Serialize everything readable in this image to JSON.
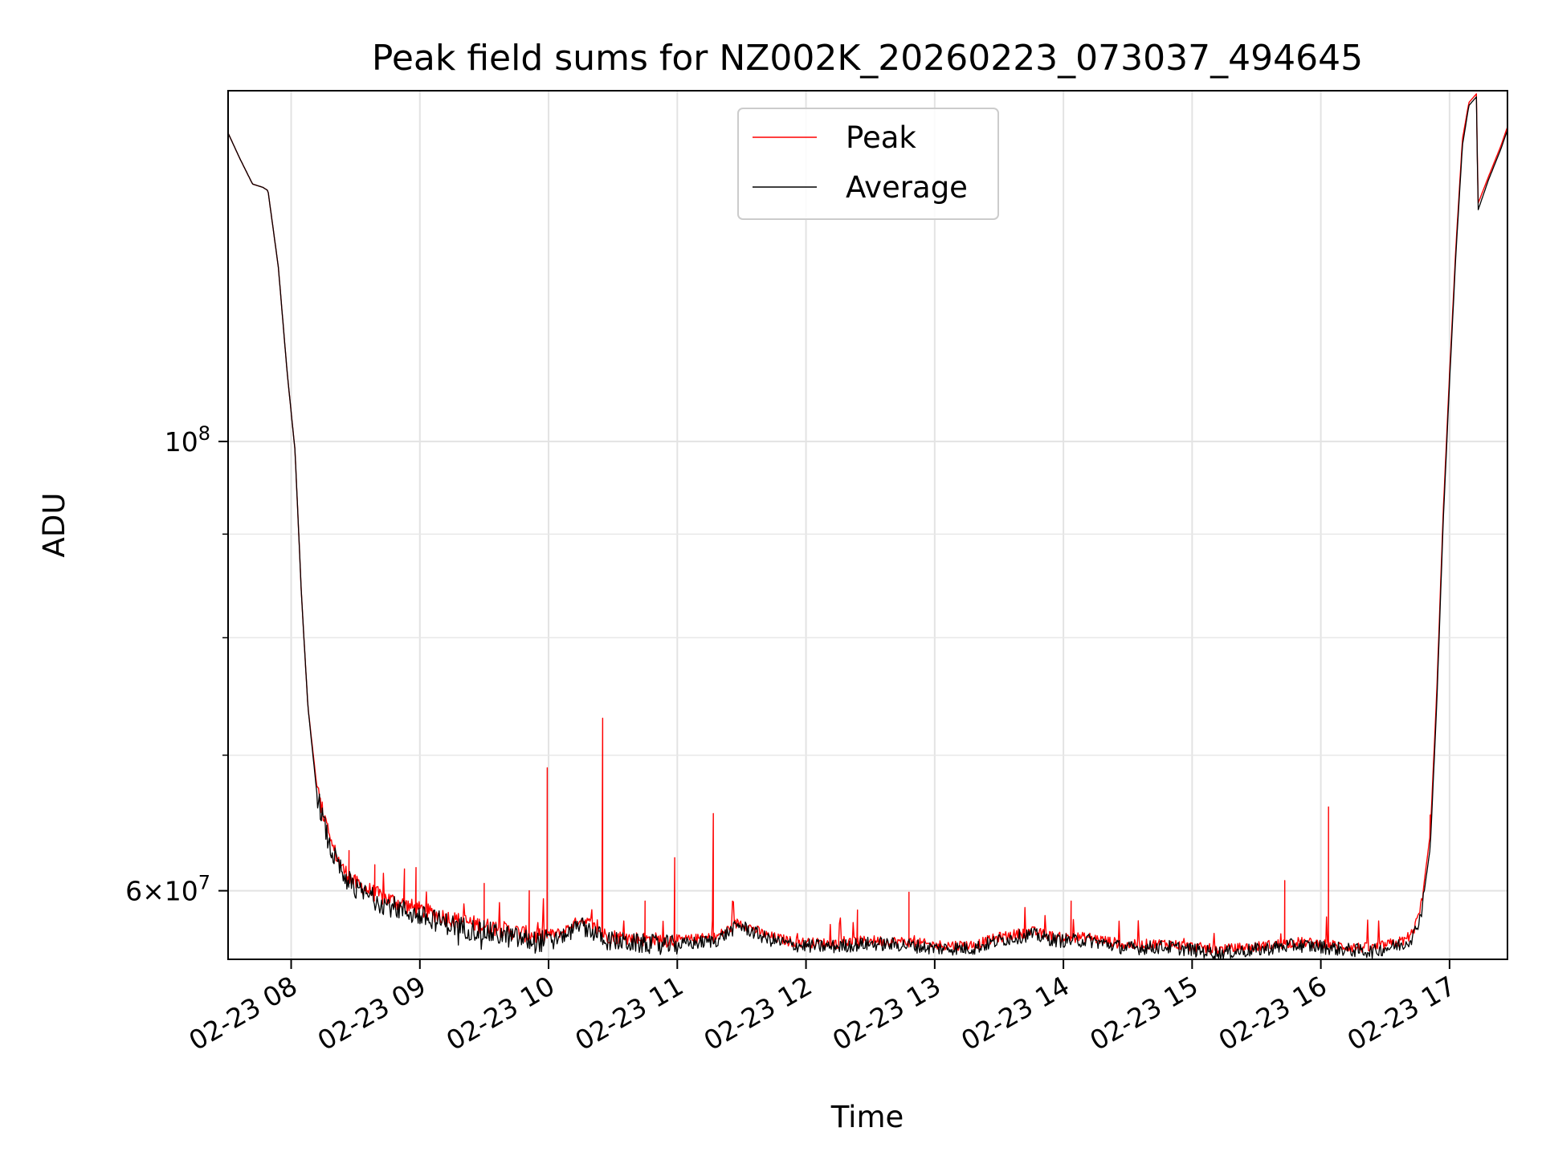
{
  "chart_data": {
    "type": "line",
    "title": "Peak field sums for NZ002K_20260223_073037_494645",
    "xlabel": "Time",
    "ylabel": "ADU",
    "x_unit": "hours (decimal, 2026-02-23)",
    "xlim": [
      7.51,
      17.45
    ],
    "yscale": "log",
    "ylim": [
      55500000,
      149000000
    ],
    "x_ticks": [
      {
        "value": 8,
        "label": "02-23 08"
      },
      {
        "value": 9,
        "label": "02-23 09"
      },
      {
        "value": 10,
        "label": "02-23 10"
      },
      {
        "value": 11,
        "label": "02-23 11"
      },
      {
        "value": 12,
        "label": "02-23 12"
      },
      {
        "value": 13,
        "label": "02-23 13"
      },
      {
        "value": 14,
        "label": "02-23 14"
      },
      {
        "value": 15,
        "label": "02-23 15"
      },
      {
        "value": 16,
        "label": "02-23 16"
      },
      {
        "value": 17,
        "label": "02-23 17"
      }
    ],
    "y_major_ticks": [
      {
        "value": 100000000,
        "base": "10",
        "exp": "8"
      },
      {
        "value": 60000000,
        "base": "6×10",
        "exp": "7"
      }
    ],
    "y_minor_ticks": [
      70000000,
      80000000,
      90000000
    ],
    "grid": true,
    "legend_position": "upper-center",
    "series": [
      {
        "name": "Peak",
        "color": "#ff0000",
        "baseline": [
          [
            7.51,
            142000000
          ],
          [
            7.6,
            138000000
          ],
          [
            7.7,
            134000000
          ],
          [
            7.78,
            133500000
          ],
          [
            7.82,
            133000000
          ],
          [
            7.9,
            122000000
          ],
          [
            7.97,
            108000000
          ],
          [
            8.03,
            99000000
          ],
          [
            8.08,
            84000000
          ],
          [
            8.13,
            74000000
          ],
          [
            8.2,
            67500000
          ],
          [
            8.3,
            63500000
          ],
          [
            8.4,
            61500000
          ],
          [
            8.5,
            60500000
          ],
          [
            8.7,
            59600000
          ],
          [
            9.0,
            58700000
          ],
          [
            9.3,
            58000000
          ],
          [
            9.6,
            57500000
          ],
          [
            9.9,
            57000000
          ],
          [
            10.1,
            57200000
          ],
          [
            10.25,
            58100000
          ],
          [
            10.45,
            57000000
          ],
          [
            10.7,
            56800000
          ],
          [
            11.0,
            56700000
          ],
          [
            11.3,
            56900000
          ],
          [
            11.48,
            57900000
          ],
          [
            11.7,
            57000000
          ],
          [
            11.9,
            56600000
          ],
          [
            12.2,
            56500000
          ],
          [
            12.5,
            56700000
          ],
          [
            12.8,
            56600000
          ],
          [
            13.0,
            56400000
          ],
          [
            13.3,
            56400000
          ],
          [
            13.5,
            56900000
          ],
          [
            13.75,
            57300000
          ],
          [
            13.95,
            56900000
          ],
          [
            14.2,
            56900000
          ],
          [
            14.5,
            56400000
          ],
          [
            14.8,
            56500000
          ],
          [
            15.0,
            56300000
          ],
          [
            15.2,
            56100000
          ],
          [
            15.5,
            56300000
          ],
          [
            15.8,
            56600000
          ],
          [
            16.0,
            56500000
          ],
          [
            16.2,
            56300000
          ],
          [
            16.4,
            56200000
          ],
          [
            16.65,
            56700000
          ],
          [
            16.72,
            57300000
          ],
          [
            16.78,
            59000000
          ],
          [
            16.85,
            64000000
          ],
          [
            16.9,
            75000000
          ],
          [
            16.95,
            92000000
          ],
          [
            17.0,
            108000000
          ],
          [
            17.05,
            125000000
          ],
          [
            17.1,
            141000000
          ],
          [
            17.15,
            147000000
          ],
          [
            17.21,
            148500000
          ],
          [
            17.22,
            131000000
          ],
          [
            17.3,
            135000000
          ],
          [
            17.4,
            140000000
          ],
          [
            17.45,
            143000000
          ]
        ],
        "spikes": [
          [
            8.45,
            62800000
          ],
          [
            8.65,
            61800000
          ],
          [
            8.88,
            61500000
          ],
          [
            8.97,
            61600000
          ],
          [
            9.5,
            60500000
          ],
          [
            9.85,
            60000000
          ],
          [
            9.99,
            69000000
          ],
          [
            10.42,
            73000000
          ],
          [
            10.75,
            59300000
          ],
          [
            10.98,
            62300000
          ],
          [
            11.28,
            65500000
          ],
          [
            12.4,
            58700000
          ],
          [
            12.8,
            59900000
          ],
          [
            14.06,
            59300000
          ],
          [
            15.72,
            60700000
          ],
          [
            16.06,
            66000000
          ],
          [
            16.85,
            65400000
          ]
        ]
      },
      {
        "name": "Average",
        "color": "#000000",
        "baseline": [
          [
            7.51,
            142000000
          ],
          [
            7.6,
            138000000
          ],
          [
            7.7,
            134000000
          ],
          [
            7.78,
            133500000
          ],
          [
            7.82,
            133000000
          ],
          [
            7.9,
            122000000
          ],
          [
            7.97,
            108000000
          ],
          [
            8.03,
            99000000
          ],
          [
            8.08,
            84000000
          ],
          [
            8.13,
            74000000
          ],
          [
            8.2,
            67000000
          ],
          [
            8.3,
            63000000
          ],
          [
            8.4,
            61100000
          ],
          [
            8.5,
            60100000
          ],
          [
            8.7,
            59200000
          ],
          [
            9.0,
            58300000
          ],
          [
            9.3,
            57600000
          ],
          [
            9.6,
            57100000
          ],
          [
            9.9,
            56600000
          ],
          [
            10.1,
            56900000
          ],
          [
            10.25,
            57800000
          ],
          [
            10.45,
            56700000
          ],
          [
            10.7,
            56500000
          ],
          [
            11.0,
            56400000
          ],
          [
            11.3,
            56700000
          ],
          [
            11.48,
            57700000
          ],
          [
            11.7,
            56800000
          ],
          [
            11.9,
            56400000
          ],
          [
            12.2,
            56300000
          ],
          [
            12.5,
            56500000
          ],
          [
            12.8,
            56400000
          ],
          [
            13.0,
            56200000
          ],
          [
            13.3,
            56200000
          ],
          [
            13.5,
            56700000
          ],
          [
            13.75,
            57100000
          ],
          [
            13.95,
            56700000
          ],
          [
            14.2,
            56700000
          ],
          [
            14.5,
            56200000
          ],
          [
            14.8,
            56300000
          ],
          [
            15.0,
            56100000
          ],
          [
            15.2,
            55900000
          ],
          [
            15.5,
            56100000
          ],
          [
            15.8,
            56400000
          ],
          [
            16.0,
            56300000
          ],
          [
            16.2,
            56100000
          ],
          [
            16.4,
            56000000
          ],
          [
            16.65,
            56500000
          ],
          [
            16.72,
            57000000
          ],
          [
            16.78,
            58500000
          ],
          [
            16.85,
            63000000
          ],
          [
            16.9,
            74000000
          ],
          [
            16.95,
            91000000
          ],
          [
            17.0,
            107000000
          ],
          [
            17.05,
            124000000
          ],
          [
            17.1,
            140000000
          ],
          [
            17.15,
            146500000
          ],
          [
            17.21,
            148000000
          ],
          [
            17.22,
            130000000
          ],
          [
            17.3,
            134500000
          ],
          [
            17.4,
            139500000
          ],
          [
            17.45,
            142500000
          ]
        ]
      }
    ]
  }
}
